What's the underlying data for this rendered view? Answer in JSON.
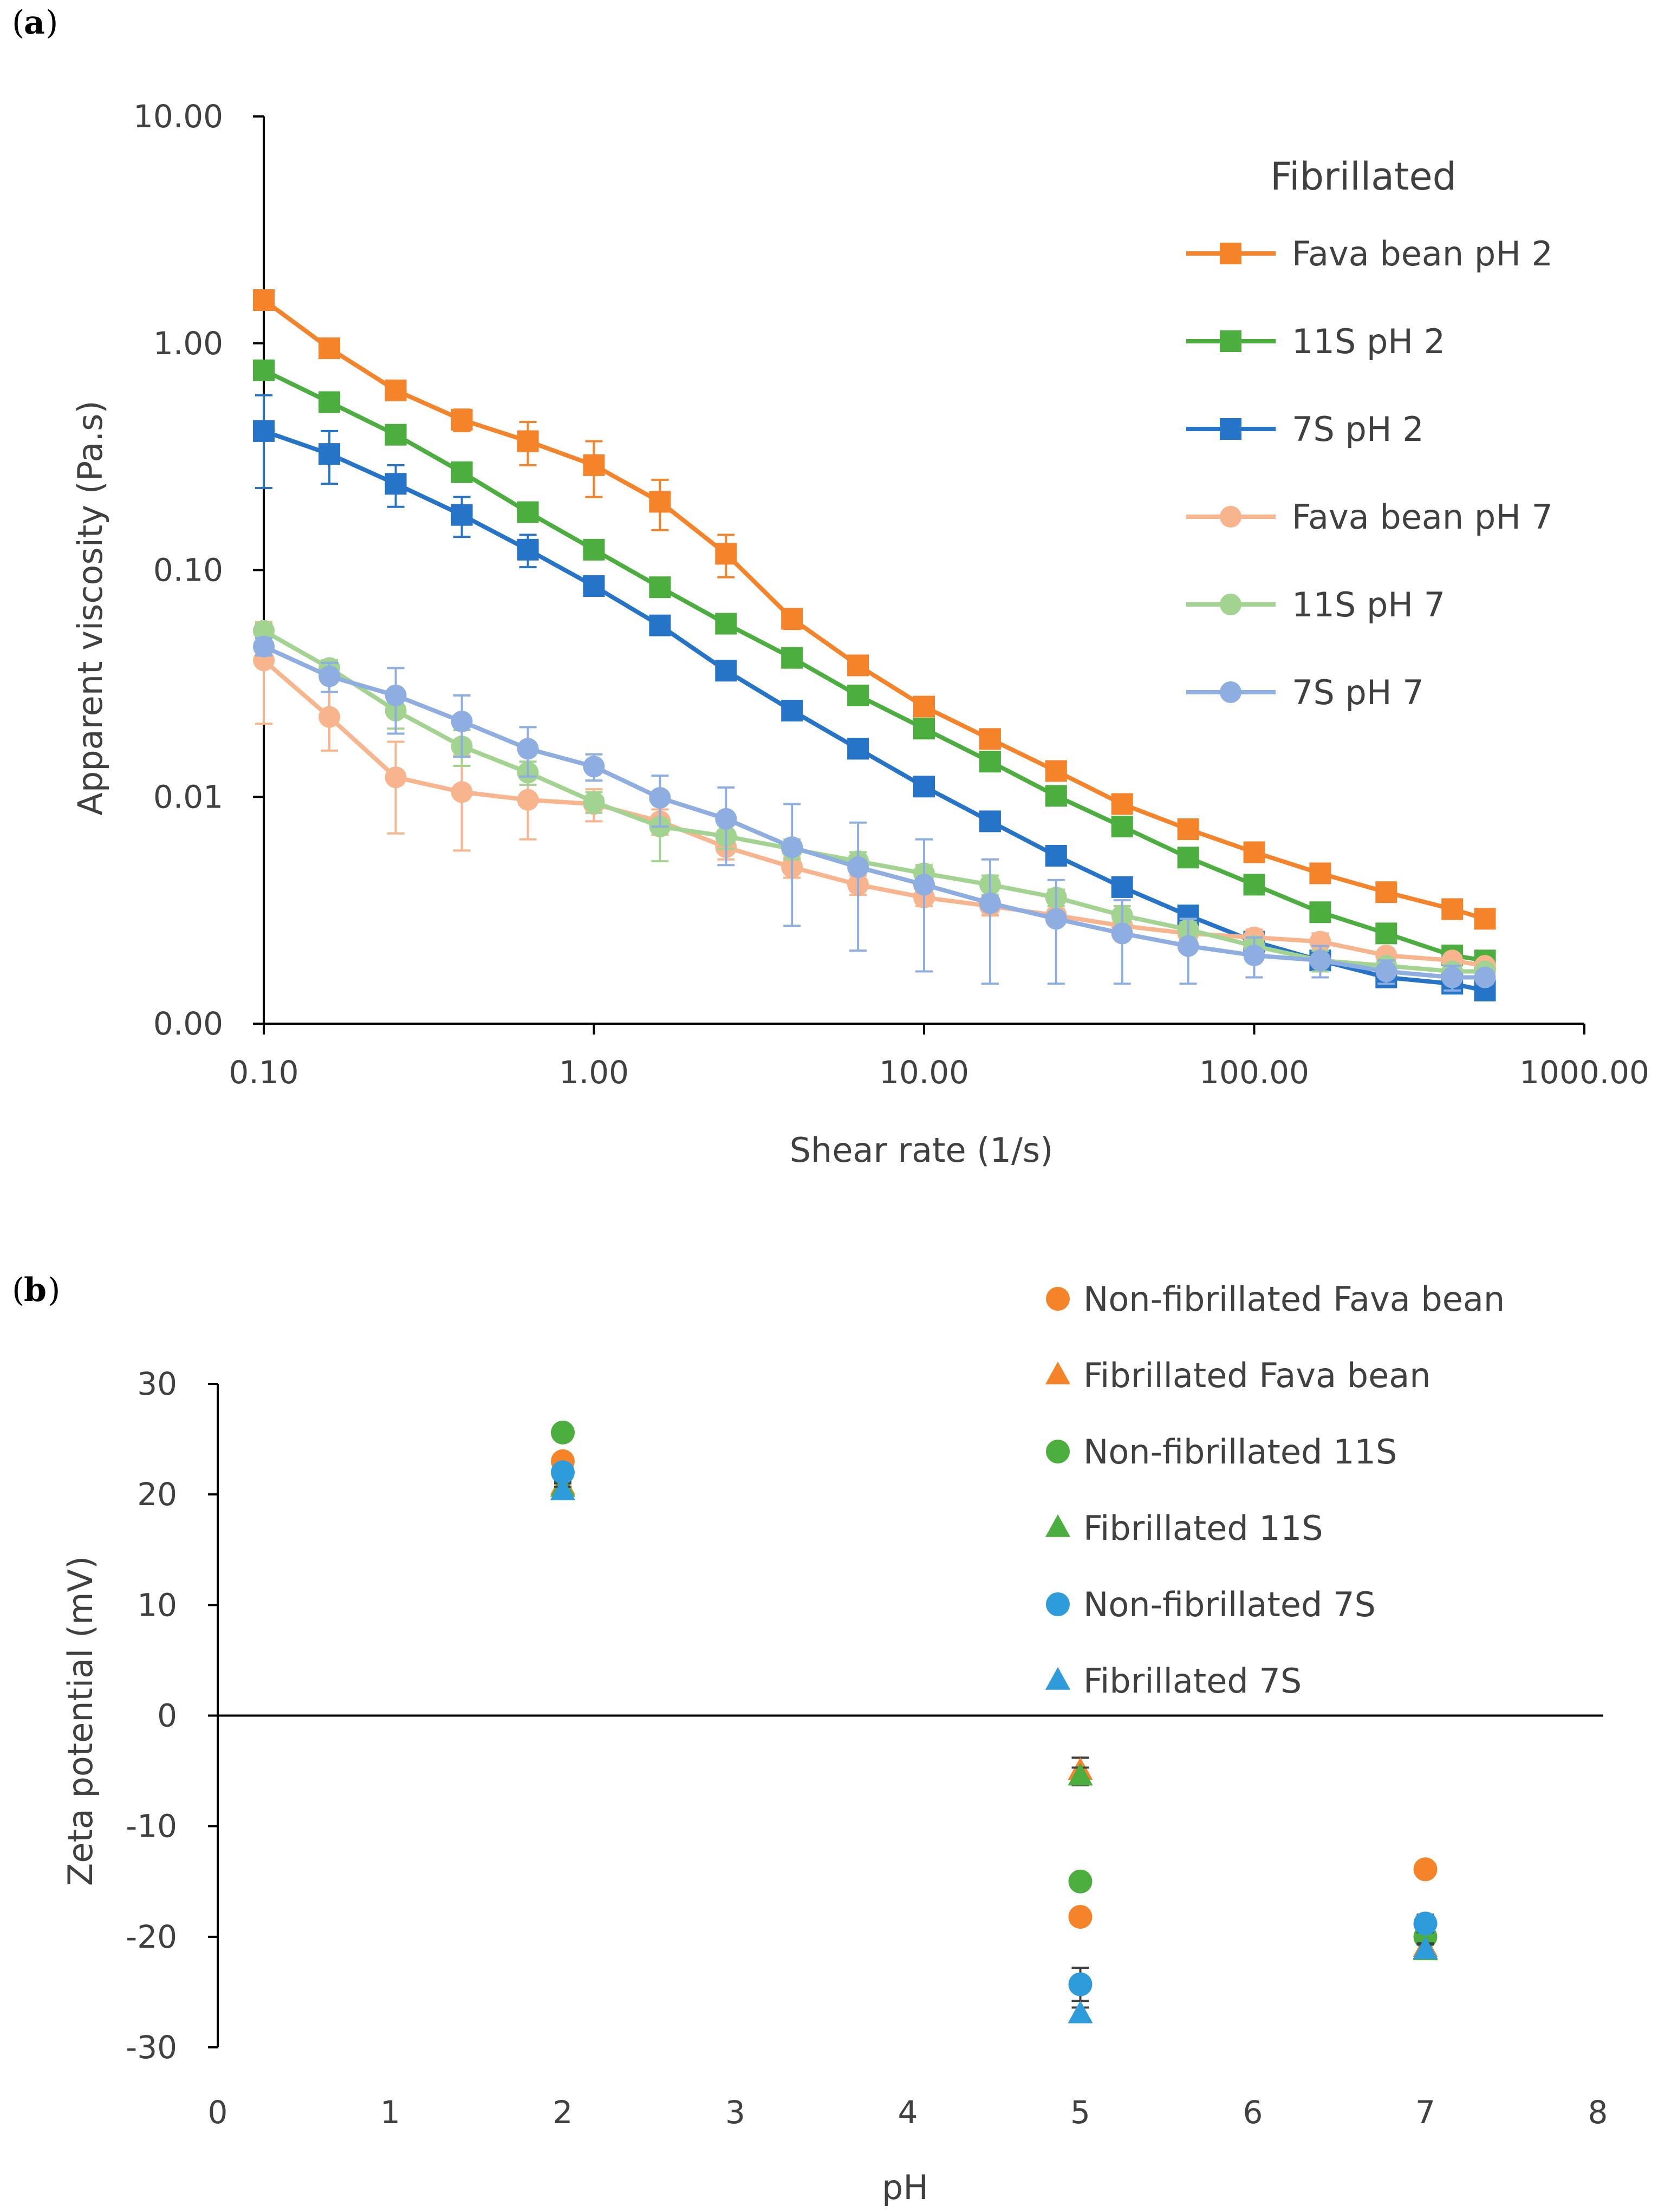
{
  "panels": {
    "a_label": "a",
    "b_label": "b"
  },
  "chart_data": [
    {
      "id": "a",
      "type": "line",
      "xscale": "log",
      "yscale": "log",
      "xlabel": "Shear rate (1/s)",
      "ylabel": "Apparent  viscosity (Pa.s)",
      "xlim": [
        0.1,
        1000
      ],
      "ylim": [
        0.001,
        10
      ],
      "x_ticks": [
        0.1,
        1,
        10,
        100,
        1000
      ],
      "x_tick_labels": [
        "0.10",
        "1.00",
        "10.00",
        "100.00",
        "1000.00"
      ],
      "y_ticks": [
        0.001,
        0.01,
        0.1,
        1,
        10
      ],
      "y_tick_labels": [
        "0.00",
        "0.01",
        "0.10",
        "1.00",
        "10.00"
      ],
      "legend_title": "Fibrillated",
      "legend_position": "top-right",
      "x": [
        0.1,
        0.158,
        0.251,
        0.398,
        0.631,
        1.0,
        1.585,
        2.512,
        3.981,
        6.31,
        10.0,
        15.85,
        25.12,
        39.81,
        63.1,
        100.0,
        158.5,
        251.2,
        398.1,
        500.0
      ],
      "series": [
        {
          "name": "Fava bean pH 2",
          "color": "#F5832A",
          "marker": "square",
          "values": [
            1.55,
            0.95,
            0.62,
            0.46,
            0.37,
            0.29,
            0.2,
            0.118,
            0.061,
            0.038,
            0.025,
            0.018,
            0.013,
            0.0093,
            0.0072,
            0.0057,
            0.0046,
            0.0038,
            0.0032,
            0.0029
          ],
          "errors": [
            0.05,
            0.05,
            0.04,
            0.05,
            0.08,
            0.08,
            0.05,
            0.025,
            0.006,
            0.003,
            0.002,
            0.001,
            0.0008,
            0.0006,
            0.0004,
            0.0003,
            0.0002,
            0.0002,
            0.0002,
            0.0002
          ]
        },
        {
          "name": "11S pH 2",
          "color": "#4BAE3E",
          "marker": "square",
          "values": [
            0.76,
            0.55,
            0.395,
            0.27,
            0.18,
            0.123,
            0.084,
            0.058,
            0.041,
            0.028,
            0.02,
            0.0143,
            0.0101,
            0.0074,
            0.0054,
            0.0041,
            0.0031,
            0.0025,
            0.002,
            0.0019
          ],
          "errors": [
            0.04,
            0.03,
            0.02,
            0.02,
            0.015,
            0.006,
            0.004,
            0.003,
            0.002,
            0.001,
            0.001,
            0.0008,
            0.0005,
            0.0004,
            0.0003,
            0.0002,
            0.0002,
            0.0001,
            0.0001,
            0.0001
          ]
        },
        {
          "name": "7S pH 2",
          "color": "#2574C7",
          "marker": "square",
          "values": [
            0.41,
            0.325,
            0.24,
            0.175,
            0.123,
            0.085,
            0.057,
            0.036,
            0.024,
            0.0163,
            0.0111,
            0.0078,
            0.0055,
            0.004,
            0.003,
            0.0023,
            0.0019,
            0.0016,
            0.0015,
            0.0014
          ],
          "errors": [
            0.18,
            0.085,
            0.05,
            0.035,
            0.02,
            0.005,
            0.003,
            0.002,
            0.001,
            0.0008,
            0.0005,
            0.0004,
            0.0003,
            0.0002,
            0.0002,
            0.0001,
            0.0001,
            0.0001,
            0.0001,
            0.0001
          ]
        },
        {
          "name": "Fava bean pH 7",
          "color": "#F8B48C",
          "marker": "circle",
          "values": [
            0.04,
            0.0225,
            0.0122,
            0.0105,
            0.0097,
            0.0093,
            0.0078,
            0.006,
            0.0049,
            0.0041,
            0.0036,
            0.0033,
            0.003,
            0.0027,
            0.0025,
            0.0024,
            0.0023,
            0.002,
            0.0019,
            0.0018
          ],
          "errors": [
            0.019,
            0.0065,
            0.0053,
            0.0047,
            0.0032,
            0.0015,
            0.001,
            0.0007,
            0.0005,
            0.0004,
            0.0003,
            0.0003,
            0.0002,
            0.0002,
            0.0002,
            0.0002,
            0.0002,
            0.0001,
            0.0001,
            0.0001
          ]
        },
        {
          "name": "11S pH 7",
          "color": "#A2D391",
          "marker": "circle",
          "values": [
            0.054,
            0.037,
            0.024,
            0.0167,
            0.0128,
            0.0095,
            0.0074,
            0.0067,
            0.0059,
            0.0052,
            0.0046,
            0.0041,
            0.0036,
            0.003,
            0.0026,
            0.0022,
            0.0019,
            0.0018,
            0.0017,
            0.0017
          ],
          "errors": [
            0.004,
            0.003,
            0.004,
            0.003,
            0.0015,
            0.001,
            0.0022,
            0.0008,
            0.0006,
            0.0005,
            0.0004,
            0.0004,
            0.0003,
            0.0003,
            0.0002,
            0.0002,
            0.0002,
            0.0001,
            0.0001,
            0.0001
          ]
        },
        {
          "name": "7S pH 7",
          "color": "#8EADE0",
          "marker": "circle",
          "values": [
            0.046,
            0.034,
            0.028,
            0.0215,
            0.0163,
            0.0136,
            0.0099,
            0.008,
            0.006,
            0.0049,
            0.0041,
            0.0034,
            0.0029,
            0.0025,
            0.0022,
            0.002,
            0.0019,
            0.0017,
            0.0016,
            0.0016
          ],
          "errors": [
            0.004,
            0.005,
            0.009,
            0.0065,
            0.004,
            0.0018,
            0.0025,
            0.003,
            0.0033,
            0.0028,
            0.0024,
            0.0019,
            0.0014,
            0.001,
            0.0007,
            0.0004,
            0.0003,
            0.0002,
            0.0002,
            0.0001
          ]
        }
      ]
    },
    {
      "id": "b",
      "type": "scatter",
      "xlabel": "pH",
      "ylabel": "Zeta potential (mV)",
      "xlim": [
        0,
        8
      ],
      "ylim": [
        -30,
        30
      ],
      "x_ticks": [
        0,
        1,
        2,
        3,
        4,
        5,
        6,
        7,
        8
      ],
      "x_tick_labels": [
        "0",
        "1",
        "2",
        "3",
        "4",
        "5",
        "6",
        "7",
        "8"
      ],
      "y_ticks": [
        -30,
        -20,
        -10,
        0,
        10,
        20,
        30
      ],
      "y_tick_labels": [
        "-30",
        "-20",
        "-10",
        "0",
        "10",
        "20",
        "30"
      ],
      "legend_position": "top-right",
      "x": [
        2,
        5,
        7
      ],
      "series": [
        {
          "name": "Non-fibrillated Fava bean",
          "color": "#F5832A",
          "marker": "circle",
          "values": [
            23.0,
            -18.2,
            -13.9
          ],
          "errors": [
            0.3,
            0.3,
            0.3
          ]
        },
        {
          "name": "Fibrillated Fava bean",
          "color": "#F5832A",
          "marker": "triangle",
          "values": [
            20.8,
            -5.0,
            -21.0
          ],
          "errors": [
            0.4,
            1.2,
            0.6
          ]
        },
        {
          "name": "Non-fibrillated 11S",
          "color": "#4BAE3E",
          "marker": "circle",
          "values": [
            25.6,
            -15.0,
            -20.0
          ],
          "errors": [
            0.3,
            0.3,
            0.5
          ]
        },
        {
          "name": "Fibrillated 11S",
          "color": "#4BAE3E",
          "marker": "triangle",
          "values": [
            20.6,
            -5.5,
            -21.3
          ],
          "errors": [
            0.4,
            0.8,
            0.6
          ]
        },
        {
          "name": "Non-fibrillated 7S",
          "color": "#2E9BDB",
          "marker": "circle",
          "values": [
            22.0,
            -24.3,
            -18.8
          ],
          "errors": [
            0.4,
            1.5,
            0.8
          ]
        },
        {
          "name": "Fibrillated 7S",
          "color": "#2E9BDB",
          "marker": "triangle",
          "values": [
            20.3,
            -27.0,
            -21.2
          ],
          "errors": [
            0.4,
            0.6,
            0.6
          ]
        }
      ]
    }
  ]
}
